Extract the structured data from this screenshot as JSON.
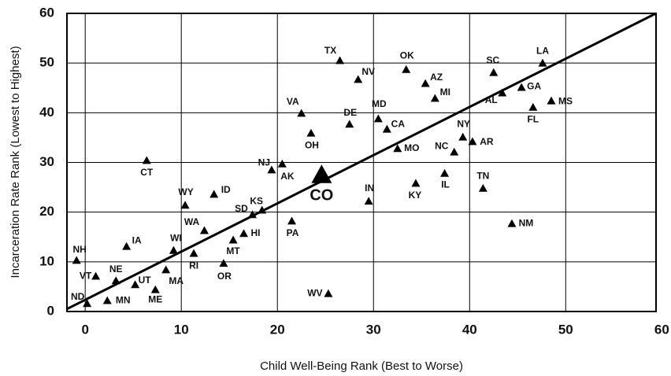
{
  "chart_data": {
    "type": "scatter",
    "xlabel": "Child Well-Being Rank (Best to Worse)",
    "ylabel": "Incarceration Rate Rank (Lowest to Highest)",
    "labels": [
      "NH",
      "ND",
      "VT",
      "NE",
      "MN",
      "UT",
      "ME",
      "IA",
      "CT",
      "WI",
      "MA",
      "WY",
      "WA",
      "RI",
      "ID",
      "OR",
      "MT",
      "HI",
      "SD",
      "KS",
      "NJ",
      "AK",
      "PA",
      "VA",
      "CO",
      "OH",
      "TX",
      "WV",
      "NV",
      "DE",
      "IN",
      "MD",
      "CA",
      "MO",
      "OK",
      "KY",
      "AZ",
      "MI",
      "IL",
      "NC",
      "NY",
      "AR",
      "TN",
      "SC",
      "AL",
      "NM",
      "GA",
      "FL",
      "LA",
      "MS"
    ],
    "x": [
      -0.9,
      0.2,
      1.1,
      3.2,
      2.3,
      5.2,
      7.3,
      4.3,
      6.4,
      9.2,
      8.4,
      10.4,
      12.4,
      11.3,
      13.4,
      14.4,
      15.4,
      16.5,
      17.4,
      18.4,
      20.5,
      19.4,
      21.5,
      22.5,
      24.6,
      23.5,
      26.5,
      25.3,
      28.4,
      27.5,
      29.5,
      30.5,
      31.4,
      32.5,
      33.4,
      34.4,
      35.4,
      36.4,
      37.4,
      38.4,
      39.3,
      40.3,
      41.4,
      42.5,
      43.4,
      44.4,
      45.4,
      46.6,
      47.6,
      48.5
    ],
    "values": [
      10.3,
      1.6,
      7.1,
      6.2,
      2.2,
      5.4,
      4.4,
      13.1,
      30.4,
      12.3,
      8.4,
      21.4,
      16.3,
      11.7,
      23.6,
      9.7,
      14.4,
      15.7,
      19.5,
      20.4,
      29.7,
      28.5,
      18.2,
      39.9,
      27.5,
      35.9,
      50.5,
      3.6,
      46.7,
      37.7,
      22.2,
      38.8,
      36.7,
      32.8,
      48.7,
      25.8,
      45.9,
      42.9,
      27.8,
      32.1,
      35.1,
      34.2,
      24.8,
      48.1,
      44.0,
      17.7,
      45.1,
      41.1,
      50.0,
      42.4
    ],
    "color": "#000000",
    "trend_line": {
      "x": [
        -1.9,
        59.4
      ],
      "y": [
        0.5,
        60
      ]
    },
    "xlim": [
      -1.9,
      59.4
    ],
    "ylim": [
      0,
      60
    ],
    "xticks": [
      0,
      10,
      20,
      30,
      40,
      50,
      60
    ],
    "yticks": [
      0,
      10,
      20,
      30,
      40,
      50,
      60
    ],
    "grid": true
  }
}
